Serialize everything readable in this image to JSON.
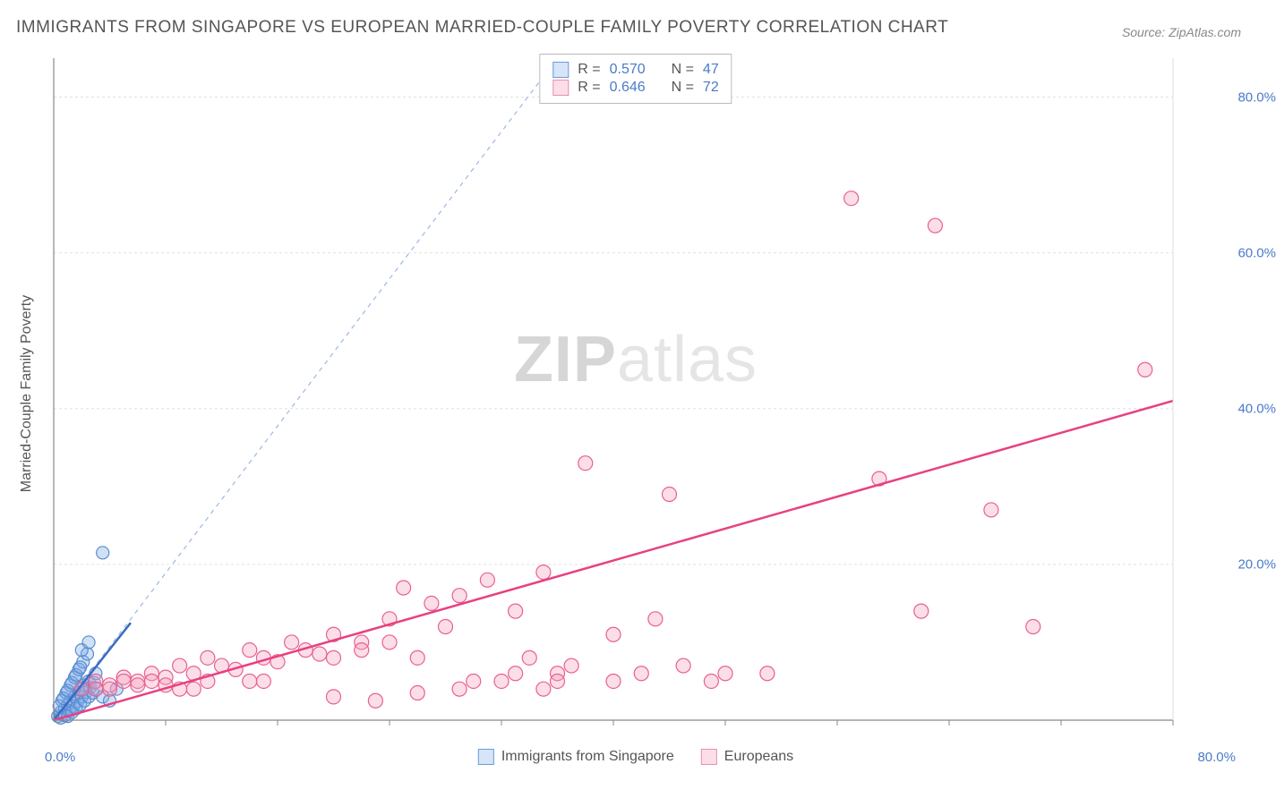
{
  "title": "IMMIGRANTS FROM SINGAPORE VS EUROPEAN MARRIED-COUPLE FAMILY POVERTY CORRELATION CHART",
  "source": "Source: ZipAtlas.com",
  "watermark_zip": "ZIP",
  "watermark_atlas": "atlas",
  "y_axis_label": "Married-Couple Family Poverty",
  "chart": {
    "type": "scatter",
    "xlim": [
      0,
      80
    ],
    "ylim": [
      0,
      85
    ],
    "x_tick_min_label": "0.0%",
    "x_tick_max_label": "80.0%",
    "y_ticks": [
      20,
      40,
      60,
      80
    ],
    "y_tick_labels": [
      "20.0%",
      "40.0%",
      "60.0%",
      "80.0%"
    ],
    "x_minor_ticks": [
      8,
      16,
      24,
      32,
      40,
      48,
      56,
      64,
      72,
      80
    ],
    "grid_color": "#e0e0e0",
    "axis_color": "#888888",
    "background": "#ffffff",
    "diagonal": {
      "from": [
        0,
        0
      ],
      "to": [
        36,
        85
      ],
      "color": "#9bb8e0",
      "dash": "5,5",
      "width": 1.2
    },
    "series": [
      {
        "name": "Immigrants from Singapore",
        "marker_color_fill": "rgba(120,170,230,0.35)",
        "marker_color_stroke": "#5a8bd0",
        "marker_radius": 7,
        "trend": {
          "from": [
            0,
            0
          ],
          "to": [
            5.5,
            12.5
          ],
          "color": "#3a6bc0",
          "width": 2.5
        },
        "R": "0.570",
        "N": "47",
        "points": [
          [
            0.3,
            0.5
          ],
          [
            0.5,
            1.0
          ],
          [
            0.8,
            1.5
          ],
          [
            1.0,
            2.0
          ],
          [
            1.2,
            2.5
          ],
          [
            1.5,
            3.0
          ],
          [
            1.8,
            3.5
          ],
          [
            2.0,
            4.0
          ],
          [
            2.2,
            4.5
          ],
          [
            2.5,
            5.0
          ],
          [
            0.5,
            0.3
          ],
          [
            0.8,
            0.6
          ],
          [
            1.1,
            1.2
          ],
          [
            1.4,
            1.8
          ],
          [
            1.7,
            2.4
          ],
          [
            2.0,
            3.0
          ],
          [
            2.3,
            3.6
          ],
          [
            2.6,
            4.2
          ],
          [
            2.9,
            4.8
          ],
          [
            1.0,
            0.5
          ],
          [
            1.3,
            1.0
          ],
          [
            1.6,
            1.5
          ],
          [
            1.9,
            2.0
          ],
          [
            2.2,
            2.5
          ],
          [
            2.5,
            3.0
          ],
          [
            2.8,
            3.5
          ],
          [
            3.1,
            4.0
          ],
          [
            0.6,
            2.5
          ],
          [
            0.9,
            3.5
          ],
          [
            1.2,
            4.5
          ],
          [
            1.5,
            5.5
          ],
          [
            1.8,
            6.5
          ],
          [
            2.1,
            7.5
          ],
          [
            2.4,
            8.5
          ],
          [
            0.4,
            1.8
          ],
          [
            0.7,
            2.8
          ],
          [
            1.0,
            3.8
          ],
          [
            1.3,
            4.8
          ],
          [
            1.6,
            5.8
          ],
          [
            1.9,
            6.8
          ],
          [
            3.5,
            21.5
          ],
          [
            2.0,
            9.0
          ],
          [
            2.5,
            10.0
          ],
          [
            3.0,
            6.0
          ],
          [
            3.5,
            3.0
          ],
          [
            4.5,
            4.0
          ],
          [
            4.0,
            2.5
          ]
        ]
      },
      {
        "name": "Europeans",
        "marker_color_fill": "rgba(245,160,190,0.35)",
        "marker_color_stroke": "#e86090",
        "marker_radius": 8,
        "trend": {
          "from": [
            0,
            0
          ],
          "to": [
            80,
            41
          ],
          "color": "#e84080",
          "width": 2.5
        },
        "R": "0.646",
        "N": "72",
        "points": [
          [
            2,
            4
          ],
          [
            3,
            5
          ],
          [
            4,
            4.5
          ],
          [
            5,
            5.5
          ],
          [
            6,
            5
          ],
          [
            7,
            6
          ],
          [
            8,
            5.5
          ],
          [
            9,
            7
          ],
          [
            10,
            6
          ],
          [
            11,
            8
          ],
          [
            12,
            7
          ],
          [
            13,
            6.5
          ],
          [
            14,
            9
          ],
          [
            15,
            8
          ],
          [
            16,
            7.5
          ],
          [
            17,
            10
          ],
          [
            18,
            9
          ],
          [
            19,
            8.5
          ],
          [
            20,
            11
          ],
          [
            22,
            10
          ],
          [
            24,
            13
          ],
          [
            25,
            17
          ],
          [
            26,
            8
          ],
          [
            27,
            15
          ],
          [
            28,
            12
          ],
          [
            29,
            16
          ],
          [
            30,
            5
          ],
          [
            31,
            18
          ],
          [
            32,
            5
          ],
          [
            33,
            14
          ],
          [
            34,
            8
          ],
          [
            35,
            19
          ],
          [
            36,
            6
          ],
          [
            37,
            7
          ],
          [
            38,
            33
          ],
          [
            40,
            11
          ],
          [
            42,
            6
          ],
          [
            43,
            13
          ],
          [
            44,
            29
          ],
          [
            45,
            7
          ],
          [
            48,
            6
          ],
          [
            33,
            6
          ],
          [
            35,
            4
          ],
          [
            26,
            3.5
          ],
          [
            23,
            2.5
          ],
          [
            20,
            3
          ],
          [
            15,
            5
          ],
          [
            14,
            5
          ],
          [
            11,
            5
          ],
          [
            10,
            4
          ],
          [
            9,
            4
          ],
          [
            8,
            4.5
          ],
          [
            7,
            5
          ],
          [
            6,
            4.5
          ],
          [
            5,
            5
          ],
          [
            4,
            4
          ],
          [
            3,
            4
          ],
          [
            20,
            8
          ],
          [
            22,
            9
          ],
          [
            24,
            10
          ],
          [
            59,
            31
          ],
          [
            57,
            67
          ],
          [
            63,
            63.5
          ],
          [
            62,
            14
          ],
          [
            67,
            27
          ],
          [
            70,
            12
          ],
          [
            78,
            45
          ],
          [
            51,
            6
          ],
          [
            47,
            5
          ],
          [
            40,
            5
          ],
          [
            36,
            5
          ],
          [
            29,
            4
          ]
        ]
      }
    ]
  },
  "legend_bottom": {
    "series1_label": "Immigrants from Singapore",
    "series2_label": "Europeans"
  },
  "legend_top": {
    "r_label": "R =",
    "n_label": "N ="
  }
}
